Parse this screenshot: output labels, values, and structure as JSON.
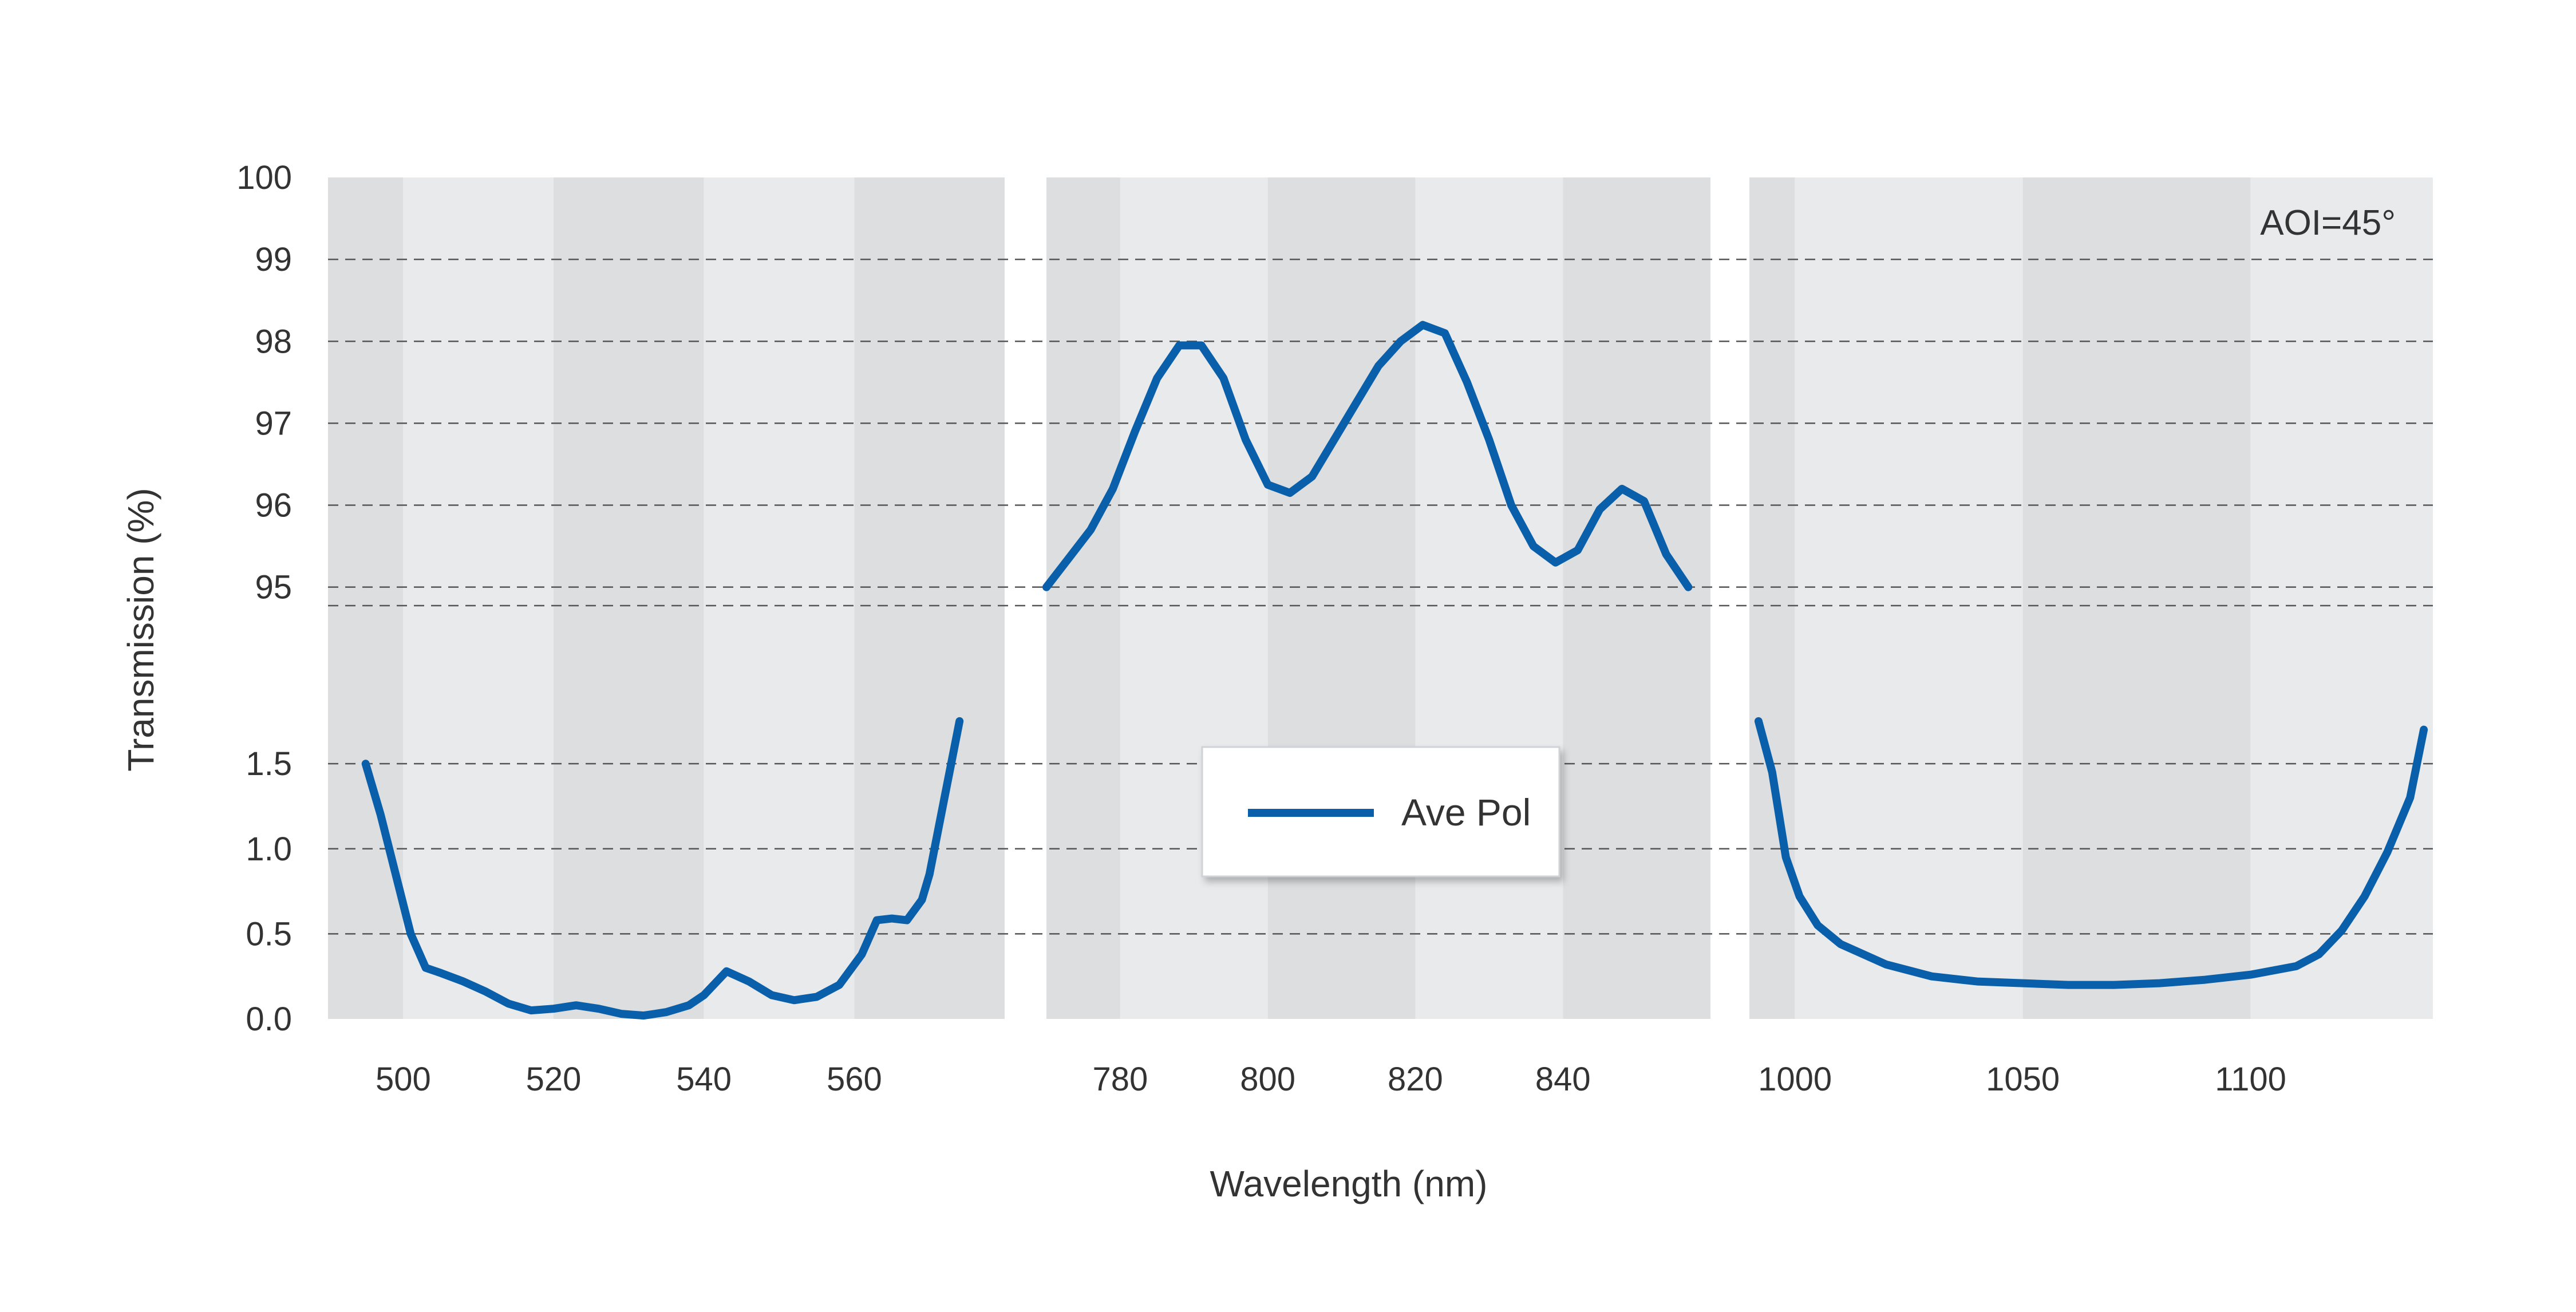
{
  "chart_data": {
    "type": "line",
    "title": "",
    "xlabel": "Wavelength (nm)",
    "ylabel": "Transmission (%)",
    "annotation": "AOI=45°",
    "colors": {
      "series": "#0a5fab",
      "band_dark": "#dcdee0",
      "band_light": "#e9eaec",
      "grid": "#555555"
    },
    "y_axis": {
      "type": "broken",
      "lower_segment": {
        "range": [
          0.0,
          1.8
        ],
        "ticks": [
          "0.0",
          "0.5",
          "1.0",
          "1.5"
        ],
        "tick_values": [
          0.0,
          0.5,
          1.0,
          1.5
        ]
      },
      "upper_segment": {
        "range": [
          94.9,
          100
        ],
        "ticks": [
          "95",
          "96",
          "97",
          "98",
          "99",
          "100"
        ],
        "tick_values": [
          95,
          96,
          97,
          98,
          99,
          100
        ]
      }
    },
    "legend": {
      "placement": "center",
      "entries": [
        "Ave Pol"
      ]
    },
    "panels": [
      {
        "xlim": [
          490,
          580
        ],
        "xticks": [
          "500",
          "520",
          "540",
          "560"
        ],
        "xtick_values": [
          500,
          520,
          540,
          560
        ],
        "series": [
          {
            "name": "Ave Pol",
            "points": [
              [
                495,
                1.5
              ],
              [
                497,
                1.2
              ],
              [
                499,
                0.85
              ],
              [
                501,
                0.5
              ],
              [
                503,
                0.3
              ],
              [
                505,
                0.27
              ],
              [
                508,
                0.22
              ],
              [
                511,
                0.16
              ],
              [
                514,
                0.09
              ],
              [
                517,
                0.05
              ],
              [
                520,
                0.06
              ],
              [
                523,
                0.08
              ],
              [
                526,
                0.06
              ],
              [
                529,
                0.03
              ],
              [
                532,
                0.02
              ],
              [
                535,
                0.04
              ],
              [
                538,
                0.08
              ],
              [
                540,
                0.14
              ],
              [
                543,
                0.28
              ],
              [
                546,
                0.22
              ],
              [
                549,
                0.14
              ],
              [
                552,
                0.11
              ],
              [
                555,
                0.13
              ],
              [
                558,
                0.2
              ],
              [
                561,
                0.38
              ],
              [
                563,
                0.58
              ],
              [
                565,
                0.59
              ],
              [
                567,
                0.58
              ],
              [
                569,
                0.7
              ],
              [
                570,
                0.85
              ],
              [
                572,
                1.3
              ],
              [
                574,
                1.75
              ]
            ]
          }
        ]
      },
      {
        "xlim": [
          770,
          860
        ],
        "xticks": [
          "780",
          "800",
          "820",
          "840"
        ],
        "xtick_values": [
          780,
          800,
          820,
          840
        ],
        "series": [
          {
            "name": "Ave Pol",
            "points": [
              [
                770,
                95.0
              ],
              [
                773,
                95.35
              ],
              [
                776,
                95.7
              ],
              [
                779,
                96.2
              ],
              [
                782,
                96.9
              ],
              [
                785,
                97.55
              ],
              [
                788,
                97.95
              ],
              [
                791,
                97.95
              ],
              [
                794,
                97.55
              ],
              [
                797,
                96.8
              ],
              [
                800,
                96.25
              ],
              [
                803,
                96.15
              ],
              [
                806,
                96.35
              ],
              [
                809,
                96.8
              ],
              [
                812,
                97.25
              ],
              [
                815,
                97.7
              ],
              [
                818,
                98.0
              ],
              [
                821,
                98.2
              ],
              [
                824,
                98.1
              ],
              [
                827,
                97.5
              ],
              [
                830,
                96.8
              ],
              [
                833,
                96.0
              ],
              [
                836,
                95.5
              ],
              [
                839,
                95.3
              ],
              [
                842,
                95.45
              ],
              [
                845,
                95.95
              ],
              [
                848,
                96.2
              ],
              [
                851,
                96.05
              ],
              [
                854,
                95.4
              ],
              [
                857,
                95.0
              ]
            ]
          }
        ]
      },
      {
        "xlim": [
          990,
          1140
        ],
        "xticks": [
          "1000",
          "1050",
          "1100"
        ],
        "xtick_values": [
          1000,
          1050,
          1100
        ],
        "series": [
          {
            "name": "Ave Pol",
            "points": [
              [
                992,
                1.75
              ],
              [
                995,
                1.45
              ],
              [
                998,
                0.95
              ],
              [
                1001,
                0.72
              ],
              [
                1005,
                0.55
              ],
              [
                1010,
                0.44
              ],
              [
                1020,
                0.32
              ],
              [
                1030,
                0.25
              ],
              [
                1040,
                0.22
              ],
              [
                1050,
                0.21
              ],
              [
                1060,
                0.2
              ],
              [
                1070,
                0.2
              ],
              [
                1080,
                0.21
              ],
              [
                1090,
                0.23
              ],
              [
                1100,
                0.26
              ],
              [
                1110,
                0.31
              ],
              [
                1115,
                0.38
              ],
              [
                1120,
                0.52
              ],
              [
                1125,
                0.72
              ],
              [
                1130,
                0.98
              ],
              [
                1135,
                1.3
              ],
              [
                1138,
                1.7
              ]
            ]
          }
        ]
      }
    ]
  }
}
